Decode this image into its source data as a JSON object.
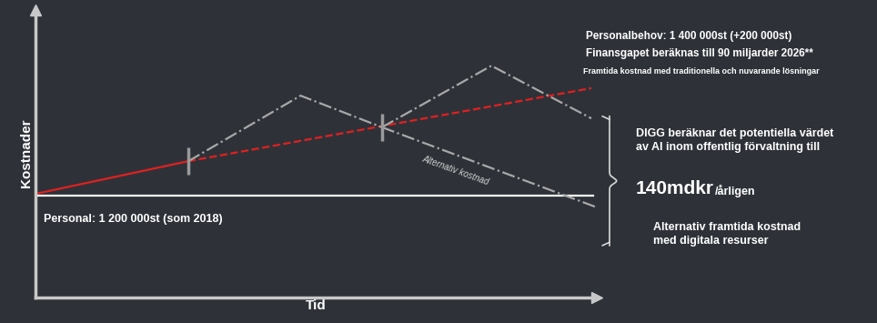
{
  "chart_data": {
    "type": "line",
    "x_label": "Tid",
    "y_label": "Kostnader",
    "xlim": [
      0,
      100
    ],
    "ylim": [
      0,
      100
    ],
    "xticks": [],
    "yticks": [],
    "tick_labels": false,
    "grid": false,
    "series": [
      {
        "color": "#e02020",
        "line_style": "solid",
        "x": [
          0,
          27.3
        ],
        "values": [
          35.9,
          47.3
        ]
      },
      {
        "color": "#e02020",
        "line_style": "dashed",
        "x": [
          27.3,
          99.1
        ],
        "values": [
          47.3,
          72.7
        ]
      },
      {
        "color": "#ffffff",
        "line_style": "solid",
        "x": [
          0,
          99.5
        ],
        "values": [
          35.3,
          35.3
        ]
      },
      {
        "color": "#a8a8a8",
        "line_style": "dashdot",
        "x": [
          27.3,
          47.3,
          61.8
        ],
        "values": [
          47.3,
          70.1,
          59.1
        ]
      },
      {
        "color": "#a8a8a8",
        "line_style": "dashdot",
        "x": [
          61.8,
          81.3,
          99.1
        ],
        "values": [
          59.1,
          80.5,
          62.2
        ]
      },
      {
        "color": "#a8a8a8",
        "line_style": "dashdot",
        "x": [
          61.8,
          100
        ],
        "values": [
          59.1,
          31.3
        ]
      },
      {
        "type": "scatter",
        "marker": "|",
        "color": "#9a9a9a",
        "x": [
          27.3,
          61.8
        ],
        "values": [
          47.3,
          59.1
        ]
      }
    ],
    "annotations": {
      "personalbehov": "Personalbehov: 1 400 000st (+200 000st)",
      "finansgap": "Finansgapet beräknas till 90 miljarder 2026**",
      "framtida": "Framtida kostnad med traditionella och nuvarande lösningar",
      "digg": [
        "DIGG beräknar det potentiella värdet",
        "av AI inom offentlig förvaltning till"
      ],
      "value": "140mdkr",
      "value_unit": "/årligen",
      "alternativ_kostnad": "Alternativ kostnad",
      "personal": "Personal: 1 200 000st (som 2018)",
      "alternativ_framtida": [
        "Alternativ framtida kostnad",
        "med digitala resurser"
      ]
    }
  }
}
